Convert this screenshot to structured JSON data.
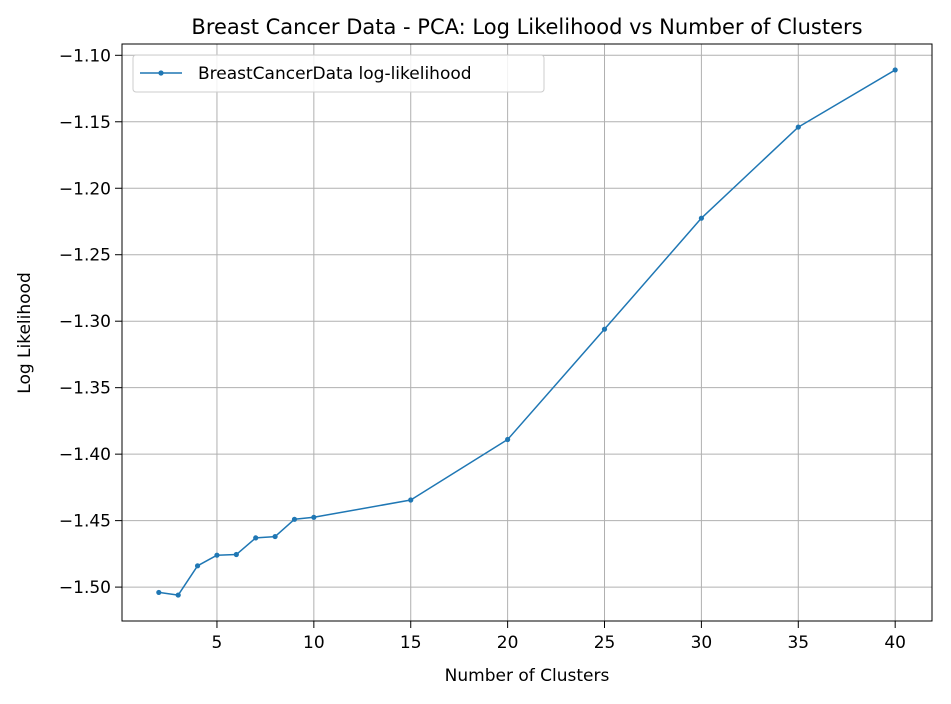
{
  "chart_data": {
    "type": "line",
    "title": "Breast Cancer Data - PCA: Log Likelihood vs Number of Clusters",
    "xlabel": "Number of Clusters",
    "ylabel": "Log Likelihood",
    "xlim": [
      0.1,
      41.9
    ],
    "ylim": [
      -1.5255,
      -1.0915
    ],
    "xticks": [
      5,
      10,
      15,
      20,
      25,
      30,
      35,
      40
    ],
    "yticks": [
      -1.5,
      -1.45,
      -1.4,
      -1.35,
      -1.3,
      -1.25,
      -1.2,
      -1.15,
      -1.1
    ],
    "grid": true,
    "legend_position": "top-left",
    "series": [
      {
        "name": "BreastCancerData log-likelihood",
        "color": "#1f77b4",
        "x": [
          2,
          3,
          4,
          5,
          6,
          7,
          8,
          9,
          10,
          15,
          20,
          25,
          30,
          35,
          40
        ],
        "y": [
          -1.504,
          -1.506,
          -1.484,
          -1.476,
          -1.4755,
          -1.463,
          -1.462,
          -1.449,
          -1.4475,
          -1.4345,
          -1.389,
          -1.306,
          -1.2225,
          -1.154,
          -1.111
        ]
      }
    ]
  }
}
